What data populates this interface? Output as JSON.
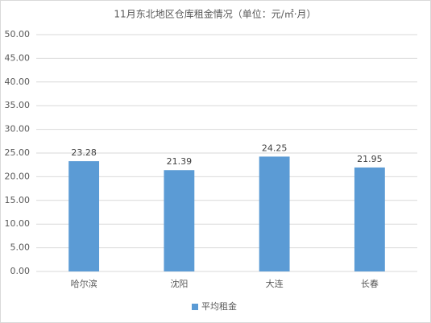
{
  "chart_data": {
    "type": "bar",
    "title": "11月东北地区仓库租金情况（单位：元/㎡·月）",
    "categories": [
      "哈尔滨",
      "沈阳",
      "大连",
      "长春"
    ],
    "series": [
      {
        "name": "平均租金",
        "color": "#5b9bd5",
        "values": [
          23.28,
          21.39,
          24.25,
          21.95
        ]
      }
    ],
    "ylim": [
      0,
      50
    ],
    "yticks": [
      {
        "value": 0,
        "label": "0.00"
      },
      {
        "value": 5,
        "label": "5.00"
      },
      {
        "value": 10,
        "label": "10.00"
      },
      {
        "value": 15,
        "label": "15.00"
      },
      {
        "value": 20,
        "label": "20.00"
      },
      {
        "value": 25,
        "label": "25.00"
      },
      {
        "value": 30,
        "label": "30.00"
      },
      {
        "value": 35,
        "label": "35.00"
      },
      {
        "value": 40,
        "label": "40.00"
      },
      {
        "value": 45,
        "label": "45.00"
      },
      {
        "value": 50,
        "label": "50.00"
      }
    ],
    "grid": true,
    "legend": "bottom"
  }
}
